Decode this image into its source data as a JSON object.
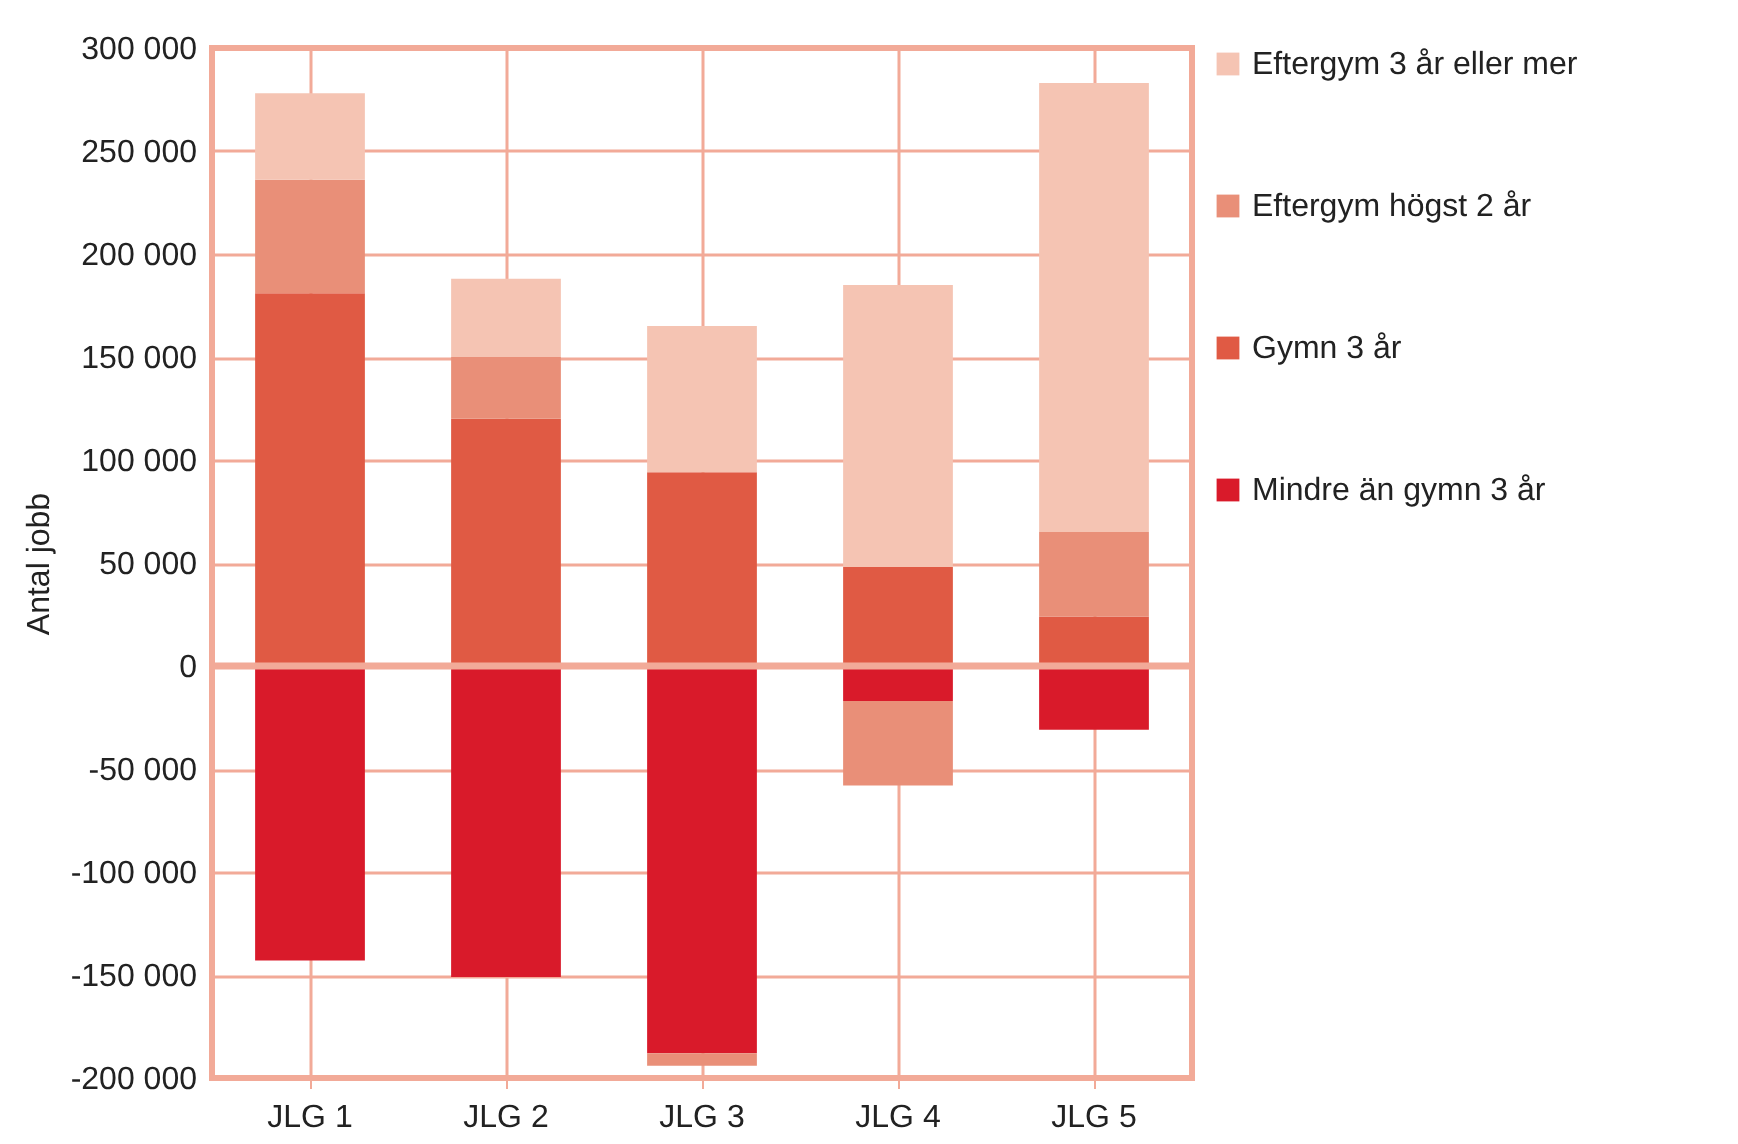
{
  "chart_data": {
    "type": "bar",
    "stacked": true,
    "ylabel": "Antal jobb",
    "categories": [
      "JLG 1",
      "JLG 2",
      "JLG 3",
      "JLG 4",
      "JLG 5"
    ],
    "series": [
      {
        "name": "Mindre än gymn 3 år",
        "color": "#d91a2a",
        "values": [
          -143000,
          -151000,
          -188000,
          -17000,
          -31000
        ]
      },
      {
        "name": "Gymn 3 år",
        "color": "#e05a44",
        "values": [
          181000,
          120000,
          94000,
          48000,
          24000
        ]
      },
      {
        "name": "Eftergym högst 2 år",
        "color": "#e98f78",
        "values": [
          55000,
          30000,
          -6000,
          -41000,
          41000
        ]
      },
      {
        "name": "Eftergym 3 år eller mer",
        "color": "#f5c4b3",
        "values": [
          42000,
          38000,
          71000,
          137000,
          218000
        ]
      }
    ],
    "ylim": [
      -200000,
      300000
    ],
    "yticks": [
      {
        "value": -200000,
        "label": "-200 000"
      },
      {
        "value": -150000,
        "label": "-150 000"
      },
      {
        "value": -100000,
        "label": "-100 000"
      },
      {
        "value": -50000,
        "label": "-50 000"
      },
      0,
      {
        "value": 50000,
        "label": "50 000"
      },
      {
        "value": 100000,
        "label": "100 000"
      },
      {
        "value": 150000,
        "label": "150 000"
      },
      {
        "value": 200000,
        "label": "200 000"
      },
      {
        "value": 250000,
        "label": "250 000"
      },
      {
        "value": 300000,
        "label": "300 000"
      }
    ],
    "ref_lines": [
      {
        "axis": "y",
        "value": 0,
        "color": "#f2aa98"
      }
    ],
    "grid": true,
    "legend": "right"
  }
}
